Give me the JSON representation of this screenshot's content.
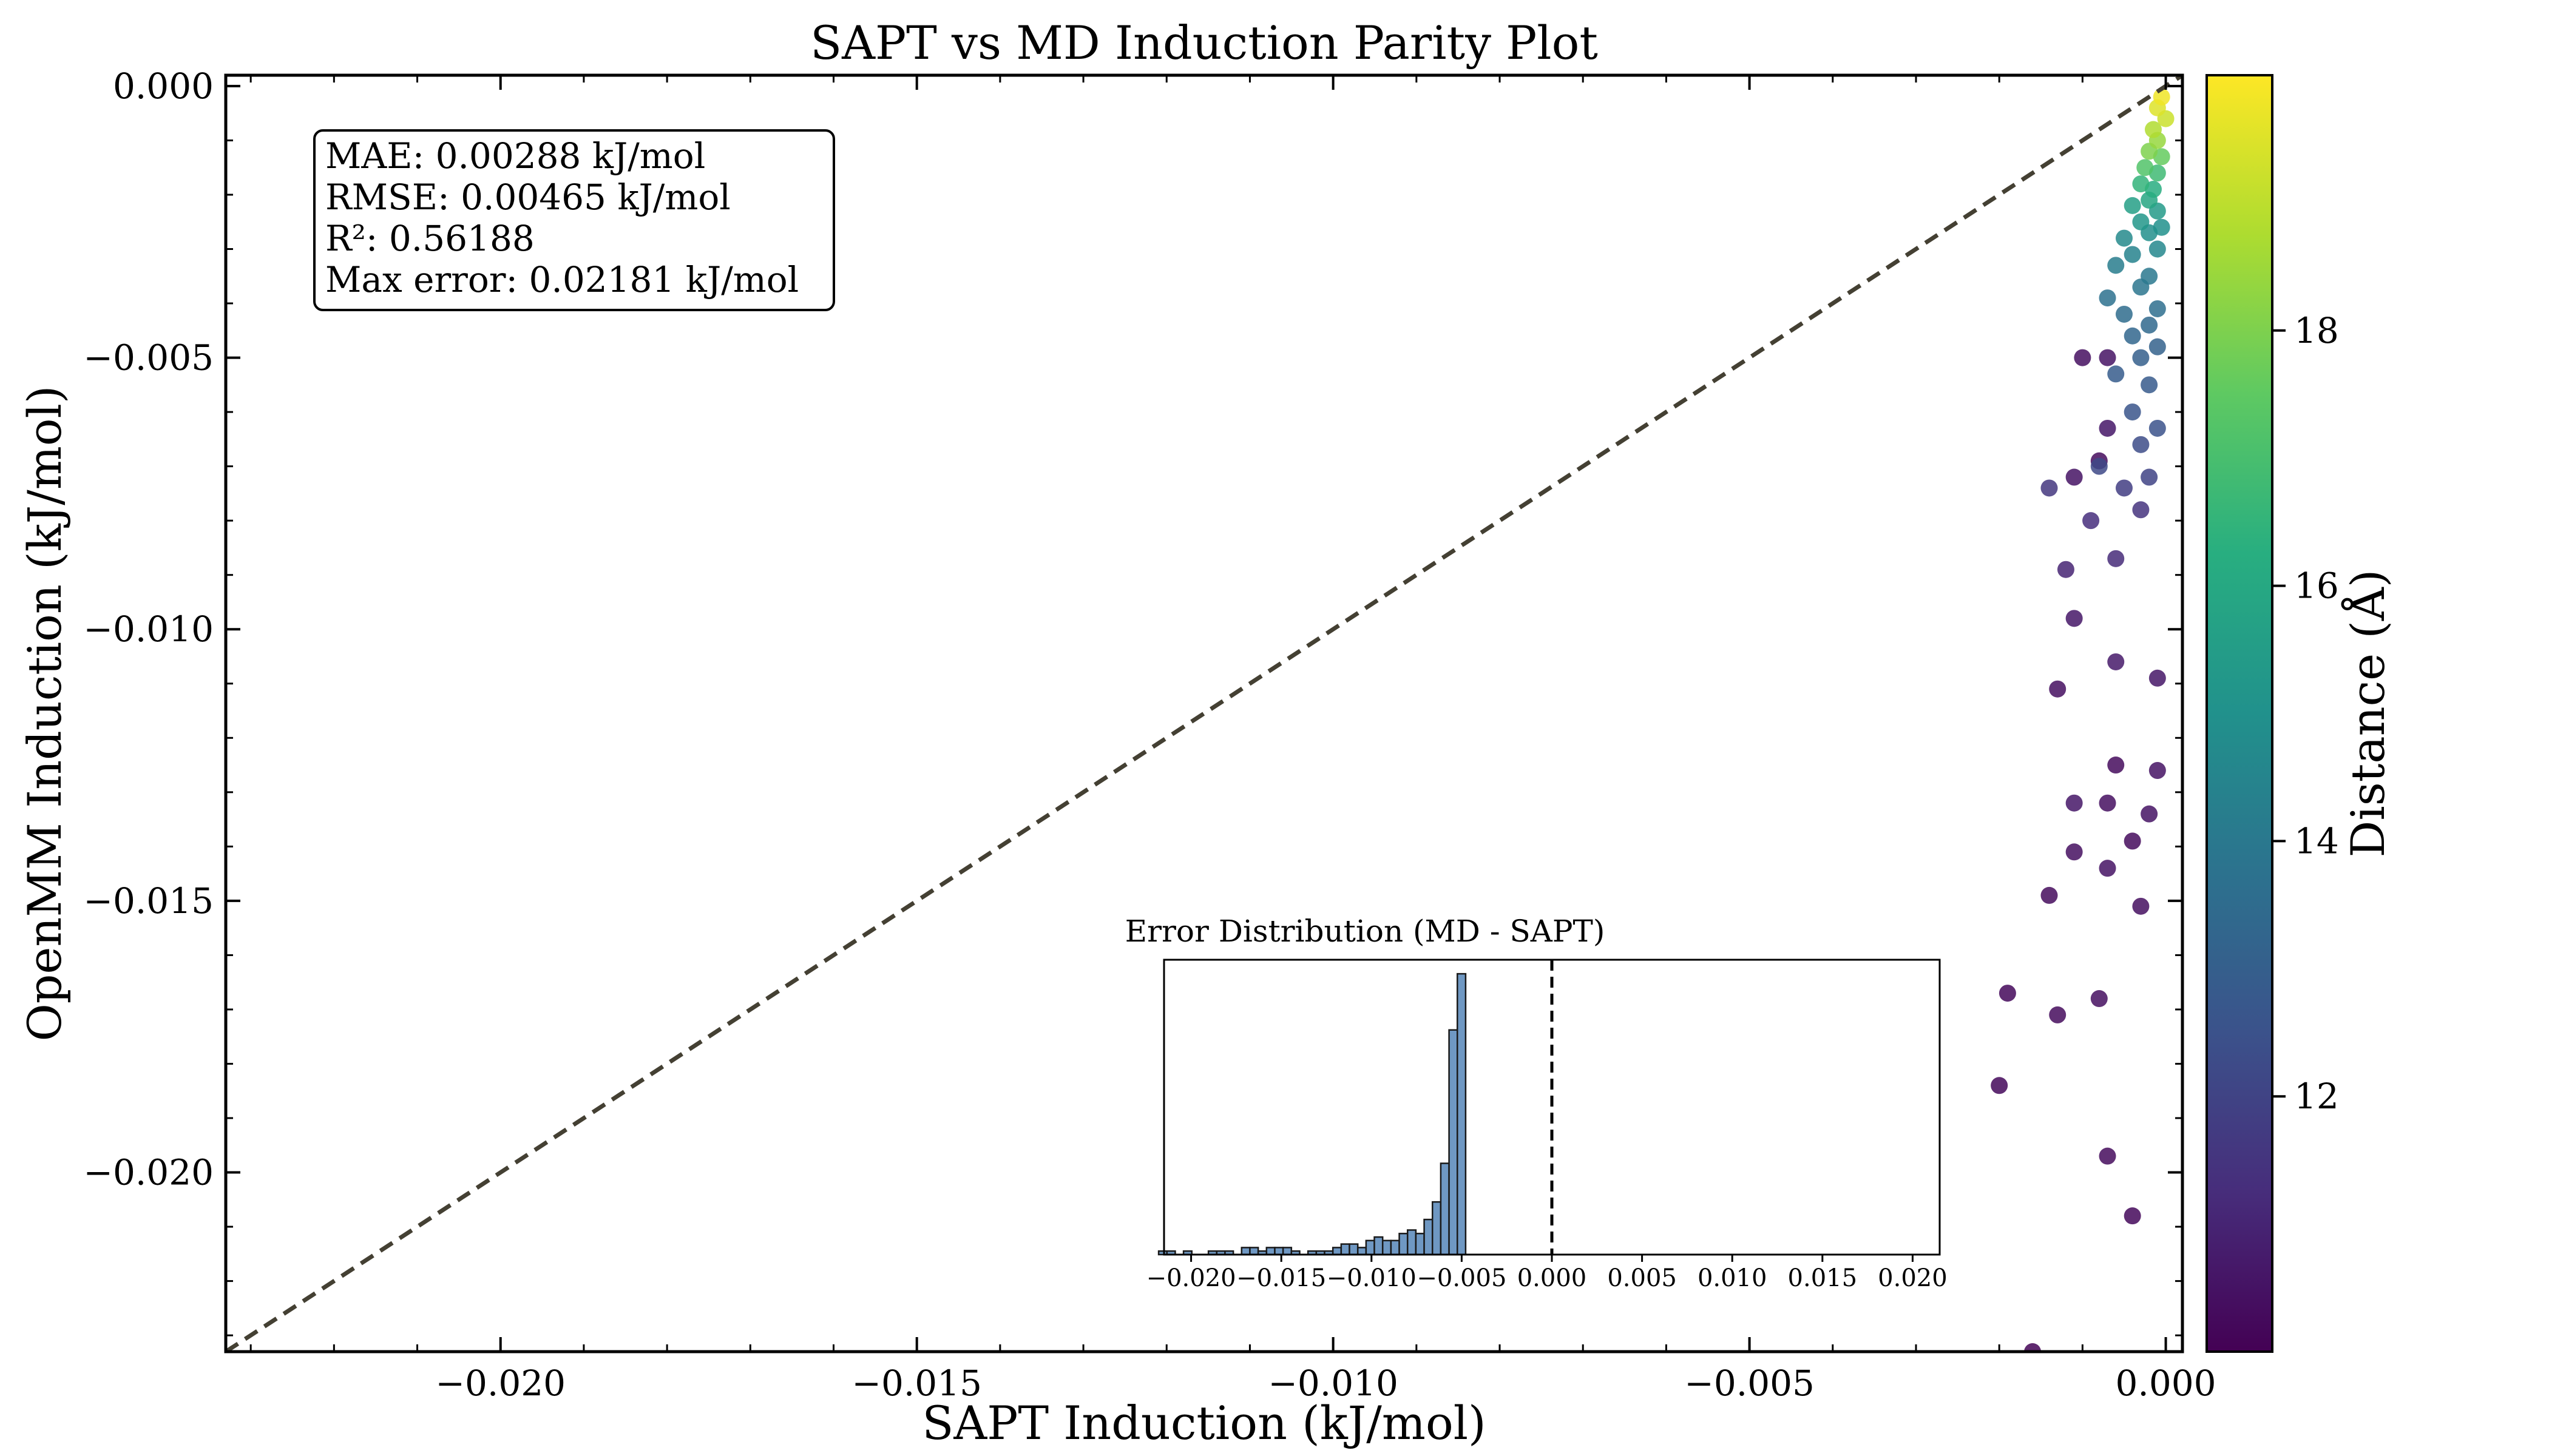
{
  "chart_data": [
    {
      "type": "scatter",
      "title": "SAPT vs MD Induction Parity Plot",
      "xlabel": "SAPT Induction (kJ/mol)",
      "ylabel": "OpenMM Induction (kJ/mol)",
      "xlim": [
        -0.0233,
        0.0002
      ],
      "ylim": [
        -0.0233,
        0.0002
      ],
      "x_ticks": [
        "−0.020",
        "−0.015",
        "−0.010",
        "−0.005",
        "0.000"
      ],
      "y_ticks": [
        "0.000",
        "−0.005",
        "−0.010",
        "−0.015",
        "−0.020"
      ],
      "parity_line": true,
      "colorbar": {
        "label": "Distance (Å)",
        "range": [
          10.0,
          20.0
        ],
        "ticks": [
          "12",
          "14",
          "16",
          "18"
        ],
        "colormap": "viridis"
      },
      "stats": [
        "MAE: 0.00288 kJ/mol",
        "RMSE: 0.00465 kJ/mol",
        "R²: 0.56188",
        "Max error: 0.02181 kJ/mol"
      ],
      "points": [
        {
          "x": -5e-05,
          "y": -0.0002,
          "d": 19.8
        },
        {
          "x": -0.0001,
          "y": -0.0004,
          "d": 19.5
        },
        {
          "x": 0.0,
          "y": -0.0006,
          "d": 19.2
        },
        {
          "x": -0.00015,
          "y": -0.0008,
          "d": 18.8
        },
        {
          "x": -0.0001,
          "y": -0.001,
          "d": 18.4
        },
        {
          "x": -0.0002,
          "y": -0.0012,
          "d": 18.0
        },
        {
          "x": -5e-05,
          "y": -0.0013,
          "d": 17.6
        },
        {
          "x": -0.00025,
          "y": -0.0015,
          "d": 17.2
        },
        {
          "x": -0.0001,
          "y": -0.0016,
          "d": 16.8
        },
        {
          "x": -0.0003,
          "y": -0.0018,
          "d": 16.5
        },
        {
          "x": -0.00015,
          "y": -0.0019,
          "d": 16.2
        },
        {
          "x": -0.0002,
          "y": -0.0021,
          "d": 15.9
        },
        {
          "x": -0.0004,
          "y": -0.0022,
          "d": 15.6
        },
        {
          "x": -0.0001,
          "y": -0.0023,
          "d": 15.4
        },
        {
          "x": -0.0003,
          "y": -0.0025,
          "d": 15.2
        },
        {
          "x": -5e-05,
          "y": -0.0026,
          "d": 15.0
        },
        {
          "x": -0.0002,
          "y": -0.0027,
          "d": 14.9
        },
        {
          "x": -0.0005,
          "y": -0.0028,
          "d": 14.7
        },
        {
          "x": -0.0001,
          "y": -0.003,
          "d": 14.6
        },
        {
          "x": -0.0004,
          "y": -0.0031,
          "d": 14.4
        },
        {
          "x": -0.0006,
          "y": -0.0033,
          "d": 14.2
        },
        {
          "x": -0.0002,
          "y": -0.0035,
          "d": 14.0
        },
        {
          "x": -0.0003,
          "y": -0.0037,
          "d": 13.9
        },
        {
          "x": -0.0007,
          "y": -0.0039,
          "d": 13.7
        },
        {
          "x": -0.0001,
          "y": -0.0041,
          "d": 13.6
        },
        {
          "x": -0.0005,
          "y": -0.0042,
          "d": 13.5
        },
        {
          "x": -0.0002,
          "y": -0.0044,
          "d": 13.4
        },
        {
          "x": -0.0004,
          "y": -0.0046,
          "d": 13.3
        },
        {
          "x": -0.0001,
          "y": -0.0048,
          "d": 13.1
        },
        {
          "x": -0.0003,
          "y": -0.005,
          "d": 13.0
        },
        {
          "x": -0.0006,
          "y": -0.0053,
          "d": 12.9
        },
        {
          "x": -0.0002,
          "y": -0.0055,
          "d": 12.8
        },
        {
          "x": -0.0004,
          "y": -0.006,
          "d": 12.6
        },
        {
          "x": -0.0001,
          "y": -0.0063,
          "d": 12.5
        },
        {
          "x": -0.0003,
          "y": -0.0066,
          "d": 12.3
        },
        {
          "x": -0.0008,
          "y": -0.007,
          "d": 12.2
        },
        {
          "x": -0.0002,
          "y": -0.0072,
          "d": 12.0
        },
        {
          "x": -0.0005,
          "y": -0.0074,
          "d": 11.8
        },
        {
          "x": -0.0014,
          "y": -0.0074,
          "d": 11.6
        },
        {
          "x": -0.0003,
          "y": -0.0078,
          "d": 11.5
        },
        {
          "x": -0.0009,
          "y": -0.008,
          "d": 11.3
        },
        {
          "x": -0.0006,
          "y": -0.0087,
          "d": 11.2
        },
        {
          "x": -0.0012,
          "y": -0.0089,
          "d": 11.0
        },
        {
          "x": -0.001,
          "y": -0.005,
          "d": 10.4
        },
        {
          "x": -0.0007,
          "y": -0.005,
          "d": 10.5
        },
        {
          "x": -0.0007,
          "y": -0.0063,
          "d": 10.6
        },
        {
          "x": -0.0008,
          "y": -0.0069,
          "d": 10.3
        },
        {
          "x": -0.0011,
          "y": -0.0072,
          "d": 10.5
        },
        {
          "x": -0.0011,
          "y": -0.0098,
          "d": 10.6
        },
        {
          "x": -0.0006,
          "y": -0.0106,
          "d": 10.7
        },
        {
          "x": -0.0013,
          "y": -0.0111,
          "d": 10.4
        },
        {
          "x": -0.0001,
          "y": -0.0109,
          "d": 10.6
        },
        {
          "x": -0.0006,
          "y": -0.0125,
          "d": 10.3
        },
        {
          "x": -0.0001,
          "y": -0.0126,
          "d": 10.5
        },
        {
          "x": -0.0007,
          "y": -0.0132,
          "d": 10.4
        },
        {
          "x": -0.0011,
          "y": -0.0132,
          "d": 10.6
        },
        {
          "x": -0.0002,
          "y": -0.0134,
          "d": 10.5
        },
        {
          "x": -0.0004,
          "y": -0.0139,
          "d": 10.3
        },
        {
          "x": -0.0011,
          "y": -0.0141,
          "d": 10.4
        },
        {
          "x": -0.0007,
          "y": -0.0144,
          "d": 10.5
        },
        {
          "x": -0.0014,
          "y": -0.0149,
          "d": 10.3
        },
        {
          "x": -0.0003,
          "y": -0.0151,
          "d": 10.4
        },
        {
          "x": -0.0019,
          "y": -0.0167,
          "d": 10.2
        },
        {
          "x": -0.0008,
          "y": -0.0168,
          "d": 10.4
        },
        {
          "x": -0.0013,
          "y": -0.0171,
          "d": 10.3
        },
        {
          "x": -0.002,
          "y": -0.0184,
          "d": 10.2
        },
        {
          "x": -0.0007,
          "y": -0.0197,
          "d": 10.3
        },
        {
          "x": -0.0004,
          "y": -0.0208,
          "d": 10.2
        },
        {
          "x": -0.0016,
          "y": -0.0233,
          "d": 10.1
        }
      ]
    },
    {
      "type": "bar",
      "title": "Error Distribution (MD - SAPT)",
      "xlim": [
        -0.0215,
        0.0215
      ],
      "x_ticks": [
        "−0.020",
        "−0.015",
        "−0.010",
        "−0.005",
        "0.000",
        "0.005",
        "0.010",
        "0.015",
        "0.020"
      ],
      "bin_width": 0.00046,
      "bin_left_start": -0.0218,
      "counts": [
        1,
        1,
        0,
        1,
        0,
        0,
        1,
        1,
        1,
        0,
        2,
        2,
        1,
        2,
        2,
        2,
        1,
        0,
        1,
        1,
        1,
        2,
        3,
        3,
        2,
        4,
        5,
        4,
        4,
        6,
        7,
        6,
        10,
        15,
        26,
        64,
        80
      ],
      "zero_line": true
    }
  ]
}
